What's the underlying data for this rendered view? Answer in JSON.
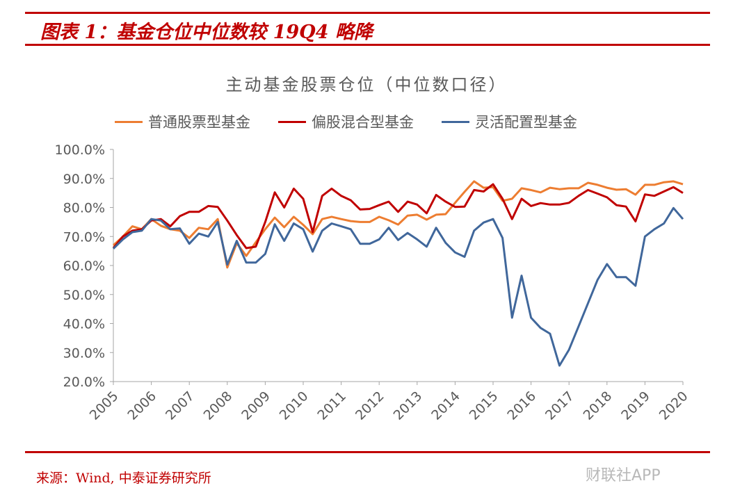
{
  "header": {
    "title": "图表 1：基金仓位中位数较 19Q4 略降"
  },
  "footer": {
    "source": "来源：Wind, 中泰证券研究所",
    "watermark": "财联社APP"
  },
  "chart_data": {
    "type": "line",
    "title": "主动基金股票仓位（中位数口径）",
    "xlabel": "",
    "ylabel": "",
    "x_start": "2005Q1",
    "frequency": "quarterly",
    "x_ticks": [
      "2005",
      "2006",
      "2007",
      "2008",
      "2009",
      "2010",
      "2011",
      "2012",
      "2013",
      "2014",
      "2015",
      "2016",
      "2017",
      "2018",
      "2019",
      "2020"
    ],
    "y_ticks": [
      "20.0%",
      "30.0%",
      "40.0%",
      "50.0%",
      "60.0%",
      "70.0%",
      "80.0%",
      "90.0%",
      "100.0%"
    ],
    "ylim": [
      20,
      100
    ],
    "grid": false,
    "legend_position": "top",
    "series": [
      {
        "name": "普通股票型基金",
        "color": "#ed7d31",
        "values": [
          67,
          70,
          73.5,
          72.5,
          76,
          73.7,
          72.5,
          72,
          69.5,
          73,
          72.5,
          76,
          59.3,
          67.7,
          63.3,
          68,
          72.5,
          76.5,
          73.2,
          76.8,
          74,
          70.8,
          76,
          76.8,
          76,
          75.3,
          75,
          75,
          76.8,
          75.6,
          74.1,
          77.2,
          77.5,
          75.8,
          77.5,
          77.7,
          81.6,
          85.4,
          89,
          86.8,
          87,
          82.3,
          83,
          86.6,
          86,
          85.2,
          86.8,
          86.3,
          86.6,
          86.6,
          88.5,
          87.8,
          86.8,
          86.1,
          86.3,
          84.4,
          87.8,
          87.8,
          88.7,
          89,
          88
        ]
      },
      {
        "name": "偏股混合型基金",
        "color": "#c00000",
        "values": [
          66,
          70,
          72,
          72.5,
          75.5,
          76,
          73.5,
          77,
          78.5,
          78.5,
          80.5,
          80.2,
          75.5,
          70.5,
          66,
          66.5,
          75,
          85.2,
          80,
          86.5,
          83,
          71.5,
          84,
          86.5,
          84,
          82.5,
          79.3,
          79.5,
          80.8,
          82,
          78.5,
          82,
          81,
          78,
          84.3,
          82,
          80.2,
          80.3,
          86,
          85.5,
          88,
          83,
          76,
          83,
          80.5,
          81.5,
          81,
          81,
          81.6,
          84,
          86,
          84.8,
          83.5,
          80.8,
          80.3,
          75.2,
          84.5,
          84,
          85.5,
          87,
          85
        ]
      },
      {
        "name": "灵活配置型基金",
        "color": "#40679b",
        "values": [
          65.8,
          69,
          71.5,
          72,
          76,
          75.5,
          72.5,
          72.8,
          67.5,
          71,
          70,
          75,
          60.3,
          68.5,
          61,
          61,
          64,
          74.2,
          68.5,
          74.5,
          72.5,
          64.8,
          72,
          74.5,
          73.5,
          72.5,
          67.5,
          67.5,
          69,
          73,
          68.8,
          71.2,
          69,
          66.5,
          73,
          67.8,
          64.5,
          63,
          72,
          74.8,
          76,
          69.5,
          42,
          56.5,
          42,
          38.5,
          36.5,
          25.5,
          31,
          39,
          47,
          55,
          60.5,
          56,
          56,
          53,
          70,
          72.5,
          74.5,
          79.8,
          76
        ]
      }
    ]
  }
}
